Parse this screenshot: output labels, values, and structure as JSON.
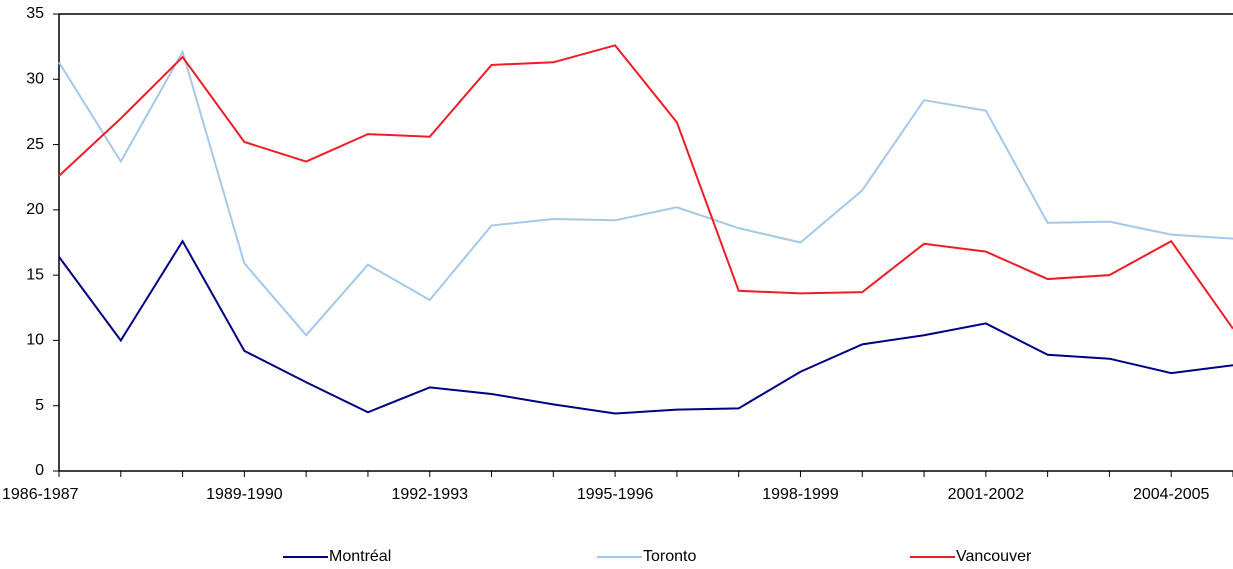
{
  "chart_data": {
    "type": "line",
    "categories": [
      "1986-1987",
      null,
      null,
      "1989-1990",
      null,
      null,
      "1992-1993",
      null,
      null,
      "1995-1996",
      null,
      null,
      "1998-1999",
      null,
      null,
      "2001-2002",
      null,
      null,
      "2004-2005",
      null
    ],
    "series": [
      {
        "name": "Montréal",
        "color": "#000080",
        "values": [
          16.4,
          10.0,
          17.6,
          9.2,
          6.8,
          4.5,
          6.4,
          5.9,
          5.1,
          4.4,
          4.7,
          4.8,
          7.6,
          9.7,
          10.4,
          11.3,
          8.9,
          8.6,
          7.5,
          8.1
        ]
      },
      {
        "name": "Toronto",
        "color": "#a6c8e8",
        "values": [
          31.3,
          23.7,
          32.1,
          15.9,
          10.4,
          15.8,
          13.1,
          18.8,
          19.3,
          19.2,
          20.2,
          18.6,
          17.5,
          21.5,
          28.4,
          27.6,
          19.0,
          19.1,
          18.1,
          17.8
        ]
      },
      {
        "name": "Vancouver",
        "color": "#ee1c24",
        "values": [
          22.6,
          27.0,
          31.7,
          25.2,
          23.7,
          25.8,
          25.6,
          31.1,
          31.3,
          32.6,
          26.7,
          13.8,
          13.6,
          13.7,
          17.4,
          16.8,
          14.7,
          15.0,
          17.6,
          10.9
        ]
      }
    ],
    "ylim": [
      0,
      35
    ],
    "yticks": [
      0,
      5,
      10,
      15,
      20,
      25,
      30,
      35
    ],
    "grid": false,
    "legend": "bottom"
  }
}
